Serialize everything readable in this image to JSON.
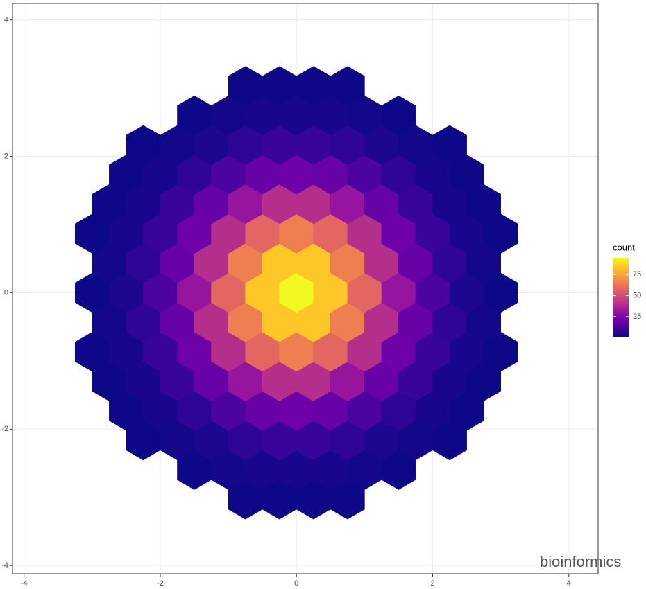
{
  "chart_data": {
    "type": "hexbin",
    "xlim": [
      -4.17,
      4.43
    ],
    "ylim": [
      -4.12,
      4.24
    ],
    "xticks": [
      -4,
      -2,
      0,
      2,
      4
    ],
    "yticks": [
      -4,
      -2,
      0,
      2,
      4
    ],
    "grid": true,
    "hex_width": 0.5,
    "legend_title": "count",
    "clim": [
      1,
      95
    ],
    "legend_ticks": [
      25,
      50,
      75
    ],
    "colorscale": [
      "#0d0887",
      "#46039f",
      "#7201a8",
      "#9c179e",
      "#bd3786",
      "#d8576b",
      "#ed7953",
      "#fb9f3a",
      "#fdca26",
      "#f0f921"
    ],
    "watermark": "bioinformics",
    "rows": [
      {
        "y": -3.031,
        "x": [
          -0.75,
          -0.25,
          0.25,
          0.75
        ],
        "values": [
          1,
          1,
          1,
          1
        ]
      },
      {
        "y": -2.598,
        "x": [
          -1.5,
          -1,
          -0.5,
          0,
          0.5,
          1,
          1.5
        ],
        "values": [
          1,
          2,
          3,
          3,
          3,
          2,
          1
        ]
      },
      {
        "y": -2.165,
        "x": [
          -2.25,
          -1.75,
          -1.25,
          -0.75,
          -0.25,
          0.25,
          0.75,
          1.25,
          1.75,
          2.25
        ],
        "values": [
          1,
          2,
          4,
          7,
          9,
          9,
          7,
          4,
          2,
          1
        ]
      },
      {
        "y": -1.732,
        "x": [
          -2.5,
          -2,
          -1.5,
          -1,
          -0.5,
          0,
          0.5,
          1,
          1.5,
          2,
          2.5
        ],
        "values": [
          1,
          3,
          7,
          13,
          19,
          21,
          19,
          13,
          7,
          3,
          1
        ]
      },
      {
        "y": -1.299,
        "x": [
          -2.75,
          -2.25,
          -1.75,
          -1.25,
          -0.75,
          -0.25,
          0.25,
          0.75,
          1.25,
          1.75,
          2.25,
          2.75
        ],
        "values": [
          1,
          3,
          9,
          19,
          31,
          40,
          40,
          31,
          19,
          9,
          3,
          1
        ]
      },
      {
        "y": -0.866,
        "x": [
          -3,
          -2.5,
          -2,
          -1.5,
          -1,
          -0.5,
          0,
          0.5,
          1,
          1.5,
          2,
          2.5,
          3
        ],
        "values": [
          1,
          3,
          9,
          21,
          40,
          58,
          65,
          58,
          40,
          21,
          9,
          3,
          1
        ]
      },
      {
        "y": -0.433,
        "x": [
          -2.75,
          -2.25,
          -1.75,
          -1.25,
          -0.75,
          -0.25,
          0.25,
          0.75,
          1.25,
          1.75,
          2.25,
          2.75
        ],
        "values": [
          2,
          7,
          19,
          40,
          65,
          84,
          84,
          65,
          40,
          19,
          7,
          2
        ]
      },
      {
        "y": 0,
        "x": [
          -3,
          -2.5,
          -2,
          -1.5,
          -1,
          -0.5,
          0,
          0.5,
          1,
          1.5,
          2,
          2.5,
          3
        ],
        "values": [
          1,
          4,
          13,
          31,
          58,
          84,
          95,
          84,
          58,
          31,
          13,
          4,
          1
        ]
      },
      {
        "y": 0.433,
        "x": [
          -2.75,
          -2.25,
          -1.75,
          -1.25,
          -0.75,
          -0.25,
          0.25,
          0.75,
          1.25,
          1.75,
          2.25,
          2.75
        ],
        "values": [
          2,
          7,
          19,
          40,
          65,
          84,
          84,
          65,
          40,
          19,
          7,
          2
        ]
      },
      {
        "y": 0.866,
        "x": [
          -3,
          -2.5,
          -2,
          -1.5,
          -1,
          -0.5,
          0,
          0.5,
          1,
          1.5,
          2,
          2.5,
          3
        ],
        "values": [
          1,
          3,
          9,
          21,
          40,
          58,
          65,
          58,
          40,
          21,
          9,
          3,
          1
        ]
      },
      {
        "y": 1.299,
        "x": [
          -2.75,
          -2.25,
          -1.75,
          -1.25,
          -0.75,
          -0.25,
          0.25,
          0.75,
          1.25,
          1.75,
          2.25,
          2.75
        ],
        "values": [
          1,
          3,
          9,
          19,
          31,
          40,
          40,
          31,
          19,
          9,
          3,
          1
        ]
      },
      {
        "y": 1.732,
        "x": [
          -2.5,
          -2,
          -1.5,
          -1,
          -0.5,
          0,
          0.5,
          1,
          1.5,
          2,
          2.5
        ],
        "values": [
          1,
          3,
          7,
          13,
          19,
          21,
          19,
          13,
          7,
          3,
          1
        ]
      },
      {
        "y": 2.165,
        "x": [
          -2.25,
          -1.75,
          -1.25,
          -0.75,
          -0.25,
          0.25,
          0.75,
          1.25,
          1.75,
          2.25
        ],
        "values": [
          1,
          2,
          4,
          7,
          9,
          9,
          7,
          4,
          2,
          1
        ]
      },
      {
        "y": 2.598,
        "x": [
          -1.5,
          -1,
          -0.5,
          0,
          0.5,
          1,
          1.5
        ],
        "values": [
          1,
          2,
          3,
          3,
          3,
          2,
          1
        ]
      },
      {
        "y": 3.031,
        "x": [
          -0.75,
          -0.25,
          0.25,
          0.75
        ],
        "values": [
          1,
          1,
          1,
          1
        ]
      }
    ]
  }
}
